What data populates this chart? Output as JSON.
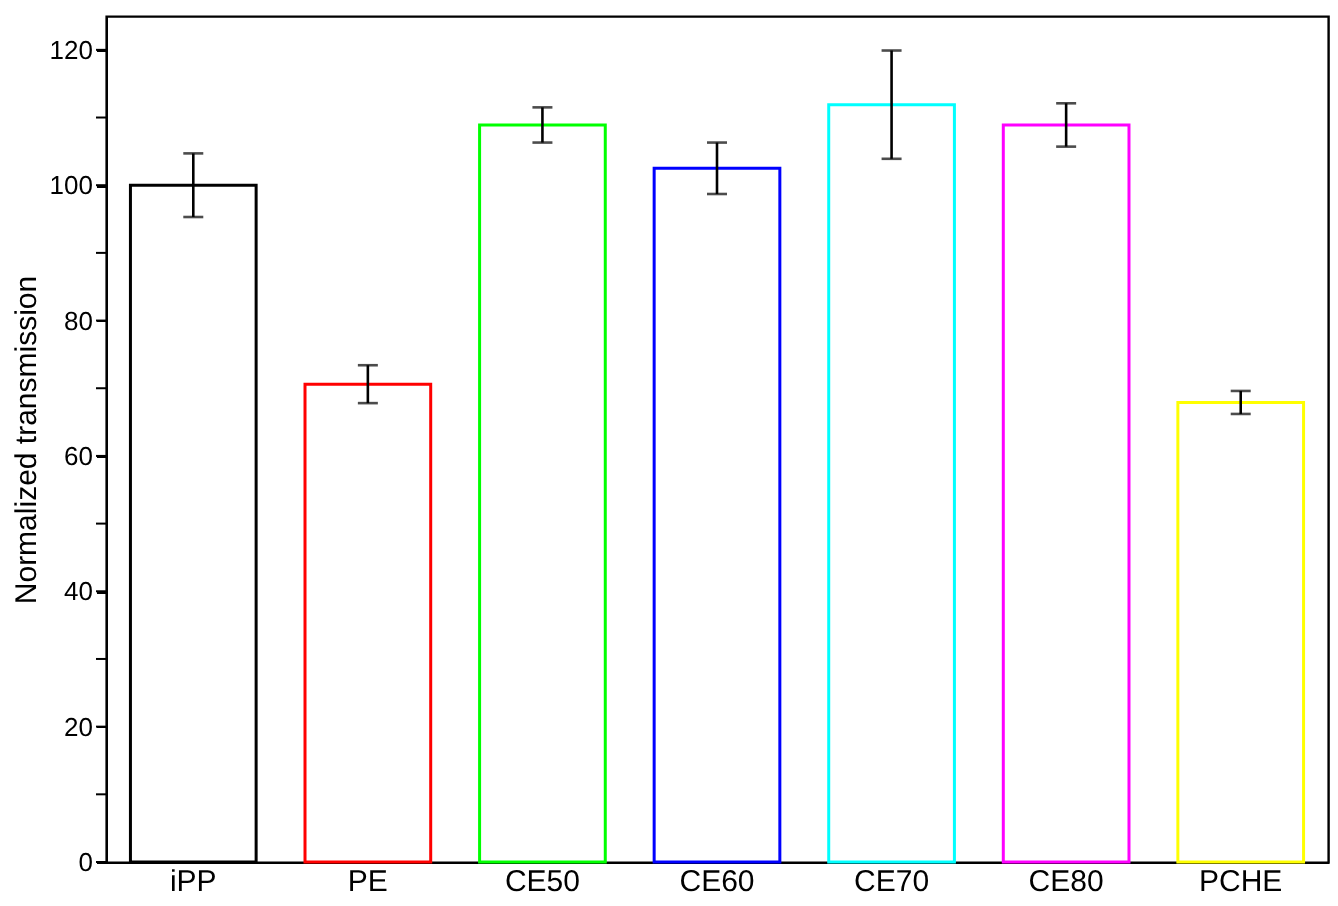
{
  "chart_data": {
    "type": "bar",
    "ylabel": "Normalized transmission",
    "categories": [
      "iPP",
      "PE",
      "CE50",
      "CE60",
      "CE70",
      "CE80",
      "PCHE"
    ],
    "values": [
      100,
      70.6,
      108.9,
      102.5,
      111.9,
      108.9,
      67.9
    ],
    "errors": [
      4.7,
      2.8,
      2.6,
      3.8,
      8.0,
      3.2,
      1.7
    ],
    "colors": [
      "#000000",
      "#ff0000",
      "#00ff00",
      "#0000ff",
      "#00ffff",
      "#ff00ff",
      "#ffff00"
    ],
    "ylim": [
      0,
      125
    ],
    "yticks": [
      0,
      {
        "value": 10,
        "label": null
      },
      20,
      {
        "value": 30,
        "label": null
      },
      40,
      {
        "value": 50,
        "label": null
      },
      60,
      {
        "value": 70,
        "label": null
      },
      80,
      {
        "value": 90,
        "label": null
      },
      100,
      {
        "value": 110,
        "label": null
      },
      120
    ],
    "grid": false
  }
}
